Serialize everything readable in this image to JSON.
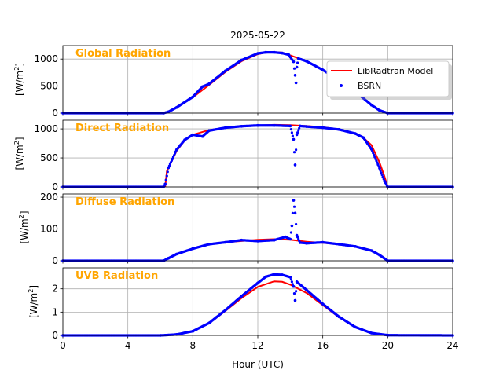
{
  "chart_data": {
    "type": "line",
    "title": "2025-05-22",
    "xlabel": "Hour (UTC)",
    "xlim": [
      0,
      24
    ],
    "xticks": [
      0,
      4,
      8,
      12,
      16,
      20,
      24
    ],
    "grid": true,
    "legend": {
      "placement": "top-right of first panel",
      "entries": [
        "LibRadtran Model",
        "BSRN"
      ]
    },
    "series_styles": {
      "model": {
        "name": "LibRadtran Model",
        "color": "#ff0000",
        "kind": "line"
      },
      "obs": {
        "name": "BSRN",
        "color": "#0000ff",
        "kind": "markers"
      }
    },
    "label_color": "#ffa500",
    "panels": [
      {
        "label": "Global Radiation",
        "ylabel_base": "[W/m",
        "ylabel_sup": "2",
        "ylabel_end": "]",
        "ylim": [
          0,
          1250
        ],
        "yticks": [
          0,
          500,
          1000
        ],
        "model": [
          [
            0,
            0
          ],
          [
            6.2,
            0
          ],
          [
            6.5,
            20
          ],
          [
            7,
            100
          ],
          [
            8,
            290
          ],
          [
            9,
            520
          ],
          [
            10,
            760
          ],
          [
            11,
            960
          ],
          [
            12,
            1090
          ],
          [
            12.5,
            1120
          ],
          [
            13,
            1130
          ],
          [
            13.5,
            1120
          ],
          [
            14,
            1070
          ],
          [
            15,
            960
          ],
          [
            16,
            800
          ],
          [
            17,
            610
          ],
          [
            18,
            400
          ],
          [
            19,
            150
          ],
          [
            19.5,
            50
          ],
          [
            20,
            0
          ],
          [
            24,
            0
          ]
        ],
        "obs": [
          [
            0,
            0
          ],
          [
            6.2,
            0
          ],
          [
            6.5,
            25
          ],
          [
            7,
            105
          ],
          [
            8,
            300
          ],
          [
            8.6,
            490
          ],
          [
            9,
            540
          ],
          [
            10,
            780
          ],
          [
            11,
            980
          ],
          [
            12,
            1105
          ],
          [
            12.5,
            1125
          ],
          [
            13,
            1125
          ],
          [
            13.5,
            1110
          ],
          [
            13.9,
            1080
          ],
          [
            14.2,
            950
          ],
          [
            14.3,
            700
          ],
          [
            14.35,
            560
          ],
          [
            14.4,
            850
          ],
          [
            14.5,
            1010
          ],
          [
            15,
            960
          ],
          [
            16,
            800
          ],
          [
            17,
            610
          ],
          [
            18,
            400
          ],
          [
            19,
            150
          ],
          [
            19.5,
            50
          ],
          [
            20,
            0
          ],
          [
            24,
            0
          ]
        ]
      },
      {
        "label": "Direct Radiation",
        "ylabel_base": "[W/m",
        "ylabel_sup": "2",
        "ylabel_end": "]",
        "ylim": [
          0,
          1150
        ],
        "yticks": [
          0,
          500,
          1000
        ],
        "model": [
          [
            6.3,
            0
          ],
          [
            6.4,
            270
          ],
          [
            7,
            620
          ],
          [
            7.5,
            800
          ],
          [
            8,
            900
          ],
          [
            9,
            980
          ],
          [
            10,
            1020
          ],
          [
            11,
            1045
          ],
          [
            12,
            1060
          ],
          [
            13,
            1070
          ],
          [
            14,
            1065
          ],
          [
            15,
            1050
          ],
          [
            16,
            1030
          ],
          [
            17,
            990
          ],
          [
            18,
            920
          ],
          [
            18.5,
            850
          ],
          [
            19,
            720
          ],
          [
            19.5,
            420
          ],
          [
            19.8,
            180
          ],
          [
            20,
            0
          ]
        ],
        "obs": [
          [
            0,
            0
          ],
          [
            6.2,
            0
          ],
          [
            6.3,
            50
          ],
          [
            6.5,
            330
          ],
          [
            7,
            640
          ],
          [
            7.5,
            810
          ],
          [
            8,
            900
          ],
          [
            8.6,
            870
          ],
          [
            9,
            970
          ],
          [
            10,
            1020
          ],
          [
            11,
            1045
          ],
          [
            12,
            1060
          ],
          [
            13,
            1060
          ],
          [
            14,
            1050
          ],
          [
            14.2,
            820
          ],
          [
            14.3,
            380
          ],
          [
            14.4,
            900
          ],
          [
            14.6,
            1050
          ],
          [
            15,
            1040
          ],
          [
            16,
            1020
          ],
          [
            17,
            990
          ],
          [
            18,
            920
          ],
          [
            18.5,
            850
          ],
          [
            19,
            650
          ],
          [
            19.5,
            320
          ],
          [
            19.8,
            100
          ],
          [
            20,
            0
          ],
          [
            24,
            0
          ]
        ]
      },
      {
        "label": "Diffuse Radiation",
        "ylabel_base": "[W/m",
        "ylabel_sup": "2",
        "ylabel_end": "]",
        "ylim": [
          0,
          210
        ],
        "yticks": [
          0,
          100,
          200
        ],
        "model": [
          [
            0,
            0
          ],
          [
            6.2,
            0
          ],
          [
            6.5,
            8
          ],
          [
            7,
            20
          ],
          [
            8,
            38
          ],
          [
            9,
            52
          ],
          [
            10,
            58
          ],
          [
            11,
            62
          ],
          [
            12,
            66
          ],
          [
            13,
            68
          ],
          [
            14,
            66
          ],
          [
            15,
            60
          ],
          [
            16,
            56
          ],
          [
            17,
            52
          ],
          [
            18,
            45
          ],
          [
            19,
            32
          ],
          [
            19.5,
            18
          ],
          [
            20,
            0
          ],
          [
            24,
            0
          ]
        ],
        "obs": [
          [
            0,
            0
          ],
          [
            6.2,
            0
          ],
          [
            6.5,
            8
          ],
          [
            7,
            21
          ],
          [
            8,
            38
          ],
          [
            9,
            52
          ],
          [
            10,
            58
          ],
          [
            11,
            65
          ],
          [
            12,
            62
          ],
          [
            13,
            65
          ],
          [
            13.7,
            75
          ],
          [
            14,
            68
          ],
          [
            14.1,
            110
          ],
          [
            14.2,
            190
          ],
          [
            14.3,
            150
          ],
          [
            14.4,
            80
          ],
          [
            14.6,
            57
          ],
          [
            15,
            55
          ],
          [
            16,
            58
          ],
          [
            17,
            52
          ],
          [
            18,
            45
          ],
          [
            19,
            32
          ],
          [
            19.5,
            18
          ],
          [
            20,
            0
          ],
          [
            24,
            0
          ]
        ]
      },
      {
        "label": "UVB Radiation",
        "ylabel_base": "[W/m",
        "ylabel_sup": "2",
        "ylabel_end": "]",
        "ylim": [
          0,
          2.9
        ],
        "yticks": [
          0,
          1,
          2
        ],
        "model": [
          [
            0,
            0
          ],
          [
            6,
            0
          ],
          [
            7,
            0.04
          ],
          [
            8,
            0.18
          ],
          [
            9,
            0.52
          ],
          [
            10,
            1.05
          ],
          [
            11,
            1.6
          ],
          [
            12,
            2.08
          ],
          [
            13,
            2.32
          ],
          [
            13.5,
            2.3
          ],
          [
            14,
            2.18
          ],
          [
            15,
            1.82
          ],
          [
            16,
            1.3
          ],
          [
            17,
            0.78
          ],
          [
            18,
            0.35
          ],
          [
            19,
            0.1
          ],
          [
            20,
            0.01
          ],
          [
            24,
            0
          ]
        ],
        "obs": [
          [
            0,
            0
          ],
          [
            6,
            0
          ],
          [
            7,
            0.04
          ],
          [
            8,
            0.18
          ],
          [
            9,
            0.53
          ],
          [
            10,
            1.08
          ],
          [
            11,
            1.68
          ],
          [
            12,
            2.25
          ],
          [
            12.5,
            2.52
          ],
          [
            13,
            2.62
          ],
          [
            13.5,
            2.6
          ],
          [
            14,
            2.5
          ],
          [
            14.2,
            2.1
          ],
          [
            14.3,
            1.5
          ],
          [
            14.4,
            2.3
          ],
          [
            15,
            1.95
          ],
          [
            16,
            1.35
          ],
          [
            17,
            0.8
          ],
          [
            18,
            0.36
          ],
          [
            19,
            0.1
          ],
          [
            20,
            0.01
          ],
          [
            24,
            0
          ]
        ]
      }
    ]
  }
}
